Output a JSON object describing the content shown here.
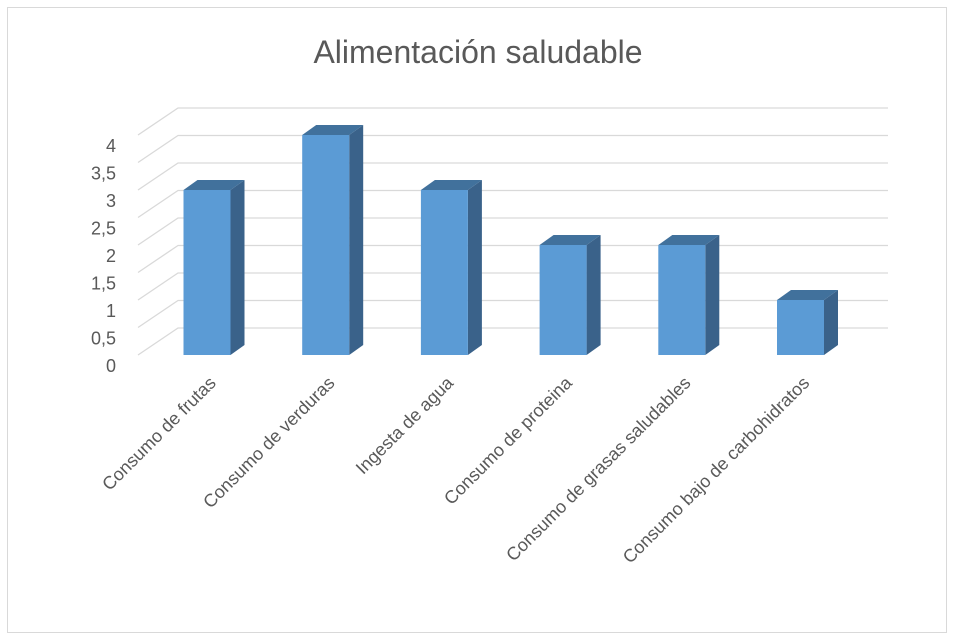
{
  "chart_data": {
    "type": "bar",
    "style": "3d-column",
    "title": "Alimentación saludable",
    "categories": [
      "Consumo de frutas",
      "Consumo de verduras",
      "Ingesta de agua",
      "Consumo de proteina",
      "Consumo de grasas saludables",
      "Consumo bajo de carbohidratos"
    ],
    "values": [
      3,
      4,
      3,
      2,
      2,
      1
    ],
    "ylim": [
      0,
      4
    ],
    "yticks": [
      "0",
      "0,5",
      "1",
      "1,5",
      "2",
      "2,5",
      "3",
      "3,5",
      "4"
    ],
    "grid": true,
    "legend": "none",
    "colors": {
      "bar_front": "#5b9bd5",
      "bar_side": "#3a628a",
      "bar_top": "#41719c",
      "gridline": "#d9d9d9",
      "text": "#595959"
    }
  }
}
